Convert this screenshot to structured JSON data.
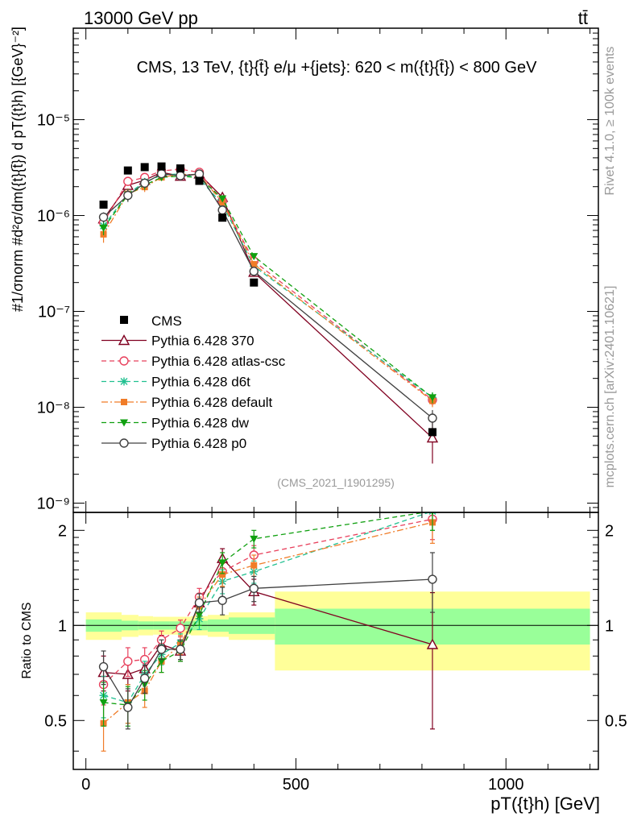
{
  "header": {
    "left": "13000 GeV pp",
    "right": "tt̄",
    "side_rivet": "Rivet 4.1.0, ≥ 100k events",
    "side_mcplots": "mcplots.cern.ch [arXiv:2401.10621]"
  },
  "chart_data": {
    "type": "line",
    "title": "CMS, 13 TeV, {t}{t̄} e/μ +{jets}: 620 < m({t}{t̄}) < 800 GeV",
    "watermark": "(CMS_2021_I1901295)",
    "ylabel_main": "#1/σnorm #d²σ/dm({t}{t̄}) d pT({t}h) [{GeV}⁻²]",
    "ylabel_ratio": "Ratio to CMS",
    "xlabel": "pT({t}h) [GeV]",
    "xlim": [
      -30,
      1220
    ],
    "ylim_main": [
      8e-10,
      9e-05
    ],
    "ylim_ratio": [
      0.35,
      2.28
    ],
    "x_ticks": [
      0,
      500,
      1000
    ],
    "x_tick_labels": [
      "0",
      "500",
      "1000"
    ],
    "y_main_tick_labels": [
      "10⁻⁹",
      "10⁻⁸",
      "10⁻⁷",
      "10⁻⁶",
      "10⁻⁵"
    ],
    "y_ratio_tick_labels": [
      "0.5",
      "1",
      "2"
    ],
    "bins": [
      [
        0,
        85
      ],
      [
        85,
        125
      ],
      [
        125,
        160
      ],
      [
        160,
        200
      ],
      [
        200,
        250
      ],
      [
        250,
        290
      ],
      [
        290,
        340
      ],
      [
        340,
        450
      ],
      [
        450,
        1200
      ]
    ],
    "band_inner": [
      0.045,
      0.035,
      0.03,
      0.03,
      0.03,
      0.035,
      0.045,
      0.06,
      0.13
    ],
    "band_outer": [
      0.1,
      0.08,
      0.07,
      0.065,
      0.065,
      0.07,
      0.08,
      0.1,
      0.28
    ],
    "x": [
      42,
      100,
      140,
      180,
      225,
      270,
      325,
      400,
      825
    ],
    "data": {
      "name": "CMS",
      "color": "#000000",
      "values": [
        1.3e-06,
        2.95e-06,
        3.2e-06,
        3.25e-06,
        3.1e-06,
        2.3e-06,
        9.5e-07,
        2e-07,
        5.5e-09
      ]
    },
    "series": [
      {
        "name": "Pythia 6.428 370",
        "color": "#800020",
        "style": "solid",
        "marker": "triangle-open",
        "ratio": [
          0.71,
          0.7,
          0.73,
          0.87,
          0.83,
          1.18,
          1.63,
          1.28,
          0.87
        ],
        "ratio_err": [
          0.09,
          0.08,
          0.07,
          0.06,
          0.06,
          0.08,
          0.12,
          0.12,
          0.4
        ]
      },
      {
        "name": "Pythia 6.428 atlas-csc",
        "color": "#e8405c",
        "style": "dashed",
        "marker": "circle-open",
        "ratio": [
          0.65,
          0.77,
          0.78,
          0.9,
          0.98,
          1.23,
          1.48,
          1.67,
          2.17
        ],
        "ratio_err": [
          0.09,
          0.08,
          0.07,
          0.06,
          0.06,
          0.08,
          0.12,
          0.12,
          0.3
        ]
      },
      {
        "name": "Pythia 6.428 d6t",
        "color": "#20c090",
        "style": "dashed",
        "marker": "star",
        "ratio": [
          0.6,
          0.57,
          0.7,
          0.81,
          0.88,
          1.05,
          1.38,
          1.48,
          2.3
        ],
        "ratio_err": [
          0.09,
          0.08,
          0.07,
          0.06,
          0.06,
          0.08,
          0.12,
          0.12,
          0.3
        ]
      },
      {
        "name": "Pythia 6.428 default",
        "color": "#f07c28",
        "style": "dashdot",
        "marker": "square",
        "ratio": [
          0.49,
          0.57,
          0.62,
          0.77,
          0.87,
          1.15,
          1.45,
          1.55,
          2.12
        ],
        "ratio_err": [
          0.09,
          0.08,
          0.07,
          0.06,
          0.06,
          0.08,
          0.12,
          0.12,
          0.3
        ]
      },
      {
        "name": "Pythia 6.428 dw",
        "color": "#10a010",
        "style": "dashed",
        "marker": "triangle-down",
        "ratio": [
          0.57,
          0.56,
          0.65,
          0.77,
          0.83,
          1.08,
          1.58,
          1.88,
          2.3
        ],
        "ratio_err": [
          0.09,
          0.08,
          0.07,
          0.06,
          0.06,
          0.08,
          0.12,
          0.12,
          0.3
        ]
      },
      {
        "name": "Pythia 6.428 p0",
        "color": "#404040",
        "style": "solid",
        "marker": "circle-open",
        "ratio": [
          0.74,
          0.55,
          0.68,
          0.84,
          0.84,
          1.18,
          1.2,
          1.31,
          1.4
        ],
        "ratio_err": [
          0.09,
          0.08,
          0.07,
          0.06,
          0.06,
          0.08,
          0.12,
          0.12,
          0.3
        ]
      }
    ]
  }
}
